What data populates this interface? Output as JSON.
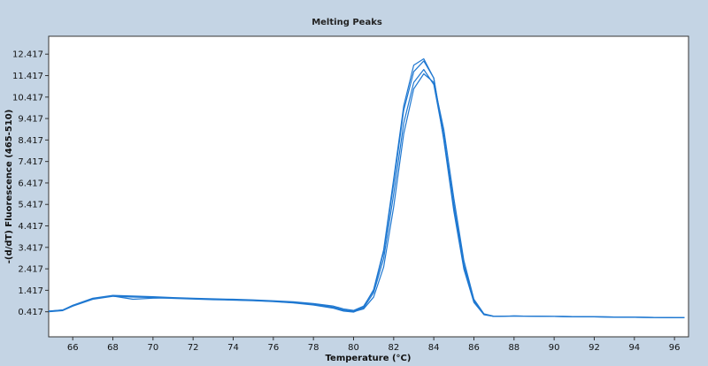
{
  "chart_data": {
    "type": "line",
    "title": "Melting Peaks",
    "xlabel": "Temperature (°C)",
    "ylabel": "-(d/dT) Fluorescence (465-510)",
    "xlim": [
      64.8,
      96.7
    ],
    "ylim": [
      -0.75,
      13.25
    ],
    "x_ticks": [
      66,
      68,
      70,
      72,
      74,
      76,
      78,
      80,
      82,
      84,
      86,
      88,
      90,
      92,
      94,
      96
    ],
    "x_tick_labels": [
      "66",
      "68",
      "70",
      "72",
      "74",
      "76",
      "78",
      "80",
      "82",
      "84",
      "86",
      "88",
      "90",
      "92",
      "94",
      "96"
    ],
    "y_ticks": [
      0.417,
      1.417,
      2.417,
      3.417,
      4.417,
      5.417,
      6.417,
      7.417,
      8.417,
      9.417,
      10.417,
      11.417,
      12.417
    ],
    "y_tick_labels": [
      "0.417",
      "1.417",
      "2.417",
      "3.417",
      "4.417",
      "5.417",
      "6.417",
      "7.417",
      "8.417",
      "9.417",
      "10.417",
      "11.417",
      "12.417"
    ],
    "grid": false,
    "line_color": "#1f78d1",
    "background_color": "#c4d4e4",
    "plot_background": "#ffffff",
    "x": [
      64.8,
      65.5,
      66,
      67,
      68,
      69,
      70,
      71,
      72,
      73,
      74,
      75,
      76,
      77,
      78,
      79,
      79.5,
      80,
      80.5,
      81,
      81.5,
      82,
      82.5,
      83,
      83.5,
      84,
      84.5,
      85,
      85.5,
      86,
      86.5,
      87,
      88,
      90,
      92,
      94,
      96.5
    ],
    "series": [
      {
        "values": [
          0.45,
          0.5,
          0.72,
          1.05,
          1.18,
          1.15,
          1.12,
          1.08,
          1.05,
          1.02,
          1.0,
          0.97,
          0.93,
          0.88,
          0.8,
          0.68,
          0.55,
          0.48,
          0.68,
          1.4,
          3.2,
          6.4,
          9.8,
          11.6,
          12.1,
          11.3,
          8.6,
          5.3,
          2.5,
          0.9,
          0.3,
          0.2,
          0.22,
          0.2,
          0.18,
          0.16,
          0.14
        ]
      },
      {
        "values": [
          0.42,
          0.47,
          0.68,
          1.0,
          1.14,
          1.1,
          1.08,
          1.04,
          1.01,
          0.98,
          0.96,
          0.93,
          0.89,
          0.83,
          0.73,
          0.58,
          0.45,
          0.4,
          0.6,
          1.3,
          2.9,
          5.9,
          9.2,
          11.1,
          11.7,
          11.0,
          8.5,
          5.4,
          2.6,
          0.95,
          0.3,
          0.2,
          0.22,
          0.2,
          0.18,
          0.16,
          0.14
        ]
      },
      {
        "values": [
          0.44,
          0.5,
          0.7,
          1.02,
          1.15,
          1.0,
          1.05,
          1.06,
          1.03,
          1.0,
          0.98,
          0.95,
          0.91,
          0.86,
          0.77,
          0.63,
          0.5,
          0.44,
          0.65,
          1.45,
          3.3,
          6.6,
          10.0,
          11.9,
          12.2,
          11.3,
          8.4,
          5.1,
          2.4,
          0.85,
          0.28,
          0.2,
          0.22,
          0.2,
          0.18,
          0.16,
          0.14
        ]
      },
      {
        "values": [
          0.43,
          0.49,
          0.71,
          1.03,
          1.16,
          1.13,
          1.1,
          1.06,
          1.03,
          1.0,
          0.97,
          0.94,
          0.9,
          0.84,
          0.75,
          0.6,
          0.47,
          0.42,
          0.55,
          1.1,
          2.5,
          5.3,
          8.7,
          10.8,
          11.5,
          11.1,
          8.9,
          5.7,
          2.8,
          1.0,
          0.32,
          0.21,
          0.22,
          0.2,
          0.18,
          0.16,
          0.14
        ]
      }
    ]
  }
}
